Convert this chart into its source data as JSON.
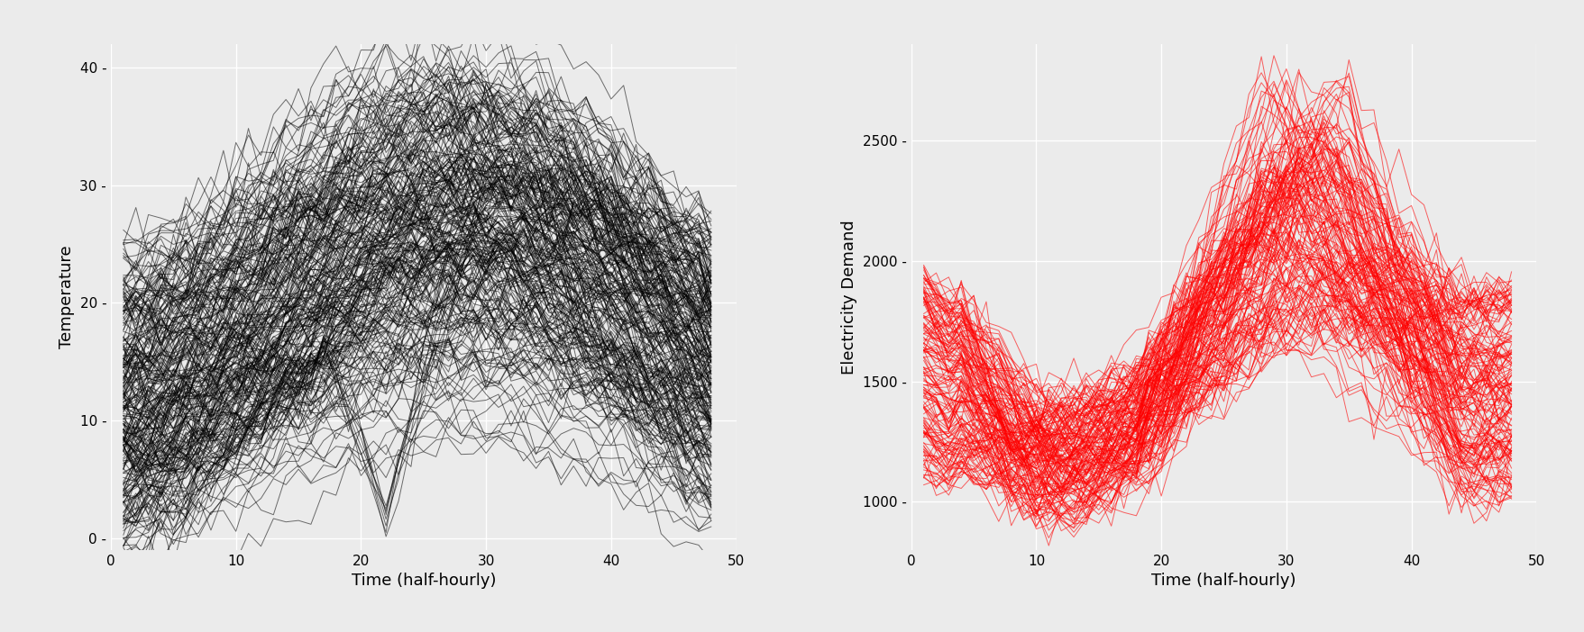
{
  "fig_width": 17.57,
  "fig_height": 7.02,
  "dpi": 100,
  "bg_color": "#EBEBEB",
  "grid_color": "white",
  "temp_color": "black",
  "elec_color": "#FF0000",
  "temp_ylabel": "Temperature",
  "elec_ylabel": "Electricity Demand",
  "xlabel": "Time (half-hourly)",
  "temp_ylim": [
    -1,
    42
  ],
  "temp_yticks": [
    0,
    10,
    20,
    30,
    40
  ],
  "elec_ylim": [
    800,
    2900
  ],
  "elec_yticks": [
    1000,
    1500,
    2000,
    2500
  ],
  "xlim": [
    0,
    50
  ],
  "xticks": [
    0,
    10,
    20,
    30,
    40,
    50
  ],
  "n_temp_curves": 200,
  "n_elec_curves": 150,
  "temp_line_alpha": 0.55,
  "elec_line_alpha": 0.6,
  "line_width": 0.7,
  "seed": 7
}
